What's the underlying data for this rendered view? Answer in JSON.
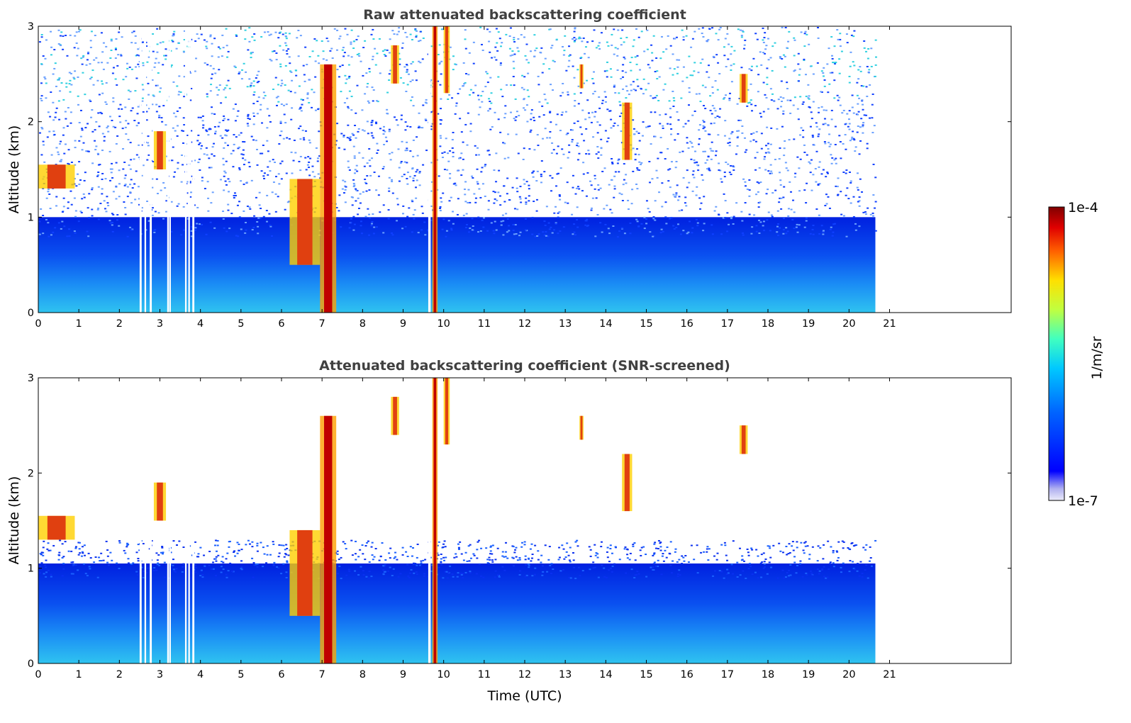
{
  "chart_data": [
    {
      "type": "heatmap",
      "title": "Raw attenuated backscattering coefficient",
      "xlabel": "",
      "ylabel": "Altitude (km)",
      "xlim": [
        0,
        24
      ],
      "ylim": [
        0,
        3
      ],
      "xticks": [
        "0",
        "1",
        "2",
        "3",
        "4",
        "5",
        "6",
        "7",
        "8",
        "9",
        "10",
        "11",
        "12",
        "13",
        "14",
        "15",
        "16",
        "17",
        "18",
        "19",
        "20",
        "21"
      ],
      "yticks": [
        "0",
        "1",
        "2",
        "3"
      ],
      "data_end_time": 20.65,
      "screened": false,
      "gaps": [
        [
          2.5,
          2.55
        ],
        [
          2.62,
          2.66
        ],
        [
          2.75,
          2.8
        ],
        [
          3.18,
          3.22
        ],
        [
          3.23,
          3.27
        ],
        [
          3.62,
          3.66
        ],
        [
          3.7,
          3.74
        ],
        [
          3.8,
          3.85
        ],
        [
          9.62,
          9.68
        ]
      ],
      "layers": [
        {
          "t": [
            0.0,
            0.9
          ],
          "z": [
            1.3,
            1.55
          ],
          "level": "high"
        },
        {
          "t": [
            2.85,
            3.15
          ],
          "z": [
            1.5,
            1.9
          ],
          "level": "high"
        },
        {
          "t": [
            6.2,
            6.95
          ],
          "z": [
            0.5,
            1.4
          ],
          "level": "high"
        },
        {
          "t": [
            6.95,
            7.35
          ],
          "z": [
            0.0,
            2.6
          ],
          "level": "max"
        },
        {
          "t": [
            9.72,
            9.85
          ],
          "z": [
            0.0,
            3.0
          ],
          "level": "max"
        },
        {
          "t": [
            10.0,
            10.15
          ],
          "z": [
            2.3,
            3.0
          ],
          "level": "high"
        },
        {
          "t": [
            8.7,
            8.9
          ],
          "z": [
            2.4,
            2.8
          ],
          "level": "high"
        },
        {
          "t": [
            13.35,
            13.45
          ],
          "z": [
            2.35,
            2.6
          ],
          "level": "high"
        },
        {
          "t": [
            14.4,
            14.65
          ],
          "z": [
            1.6,
            2.2
          ],
          "level": "high"
        },
        {
          "t": [
            17.3,
            17.5
          ],
          "z": [
            2.2,
            2.5
          ],
          "level": "high"
        }
      ]
    },
    {
      "type": "heatmap",
      "title": "Attenuated backscattering coefficient (SNR-screened)",
      "xlabel": "Time (UTC)",
      "ylabel": "Altitude (km)",
      "xlim": [
        0,
        24
      ],
      "ylim": [
        0,
        3
      ],
      "xticks": [
        "0",
        "1",
        "2",
        "3",
        "4",
        "5",
        "6",
        "7",
        "8",
        "9",
        "10",
        "11",
        "12",
        "13",
        "14",
        "15",
        "16",
        "17",
        "18",
        "19",
        "20",
        "21"
      ],
      "yticks": [
        "0",
        "1",
        "2",
        "3"
      ],
      "data_end_time": 20.65,
      "screened": true,
      "gaps": [
        [
          2.5,
          2.55
        ],
        [
          2.62,
          2.66
        ],
        [
          2.75,
          2.8
        ],
        [
          3.18,
          3.22
        ],
        [
          3.23,
          3.27
        ],
        [
          3.62,
          3.66
        ],
        [
          3.7,
          3.74
        ],
        [
          3.8,
          3.85
        ],
        [
          9.62,
          9.68
        ]
      ],
      "layers": [
        {
          "t": [
            0.0,
            0.9
          ],
          "z": [
            1.3,
            1.55
          ],
          "level": "high"
        },
        {
          "t": [
            2.85,
            3.15
          ],
          "z": [
            1.5,
            1.9
          ],
          "level": "high"
        },
        {
          "t": [
            6.2,
            6.95
          ],
          "z": [
            0.5,
            1.4
          ],
          "level": "high"
        },
        {
          "t": [
            6.95,
            7.35
          ],
          "z": [
            0.0,
            2.6
          ],
          "level": "max"
        },
        {
          "t": [
            9.72,
            9.85
          ],
          "z": [
            0.0,
            3.0
          ],
          "level": "max"
        },
        {
          "t": [
            10.0,
            10.15
          ],
          "z": [
            2.3,
            3.0
          ],
          "level": "high"
        },
        {
          "t": [
            8.7,
            8.9
          ],
          "z": [
            2.4,
            2.8
          ],
          "level": "high"
        },
        {
          "t": [
            13.35,
            13.45
          ],
          "z": [
            2.35,
            2.6
          ],
          "level": "high"
        },
        {
          "t": [
            14.4,
            14.65
          ],
          "z": [
            1.6,
            2.2
          ],
          "level": "high"
        },
        {
          "t": [
            17.3,
            17.5
          ],
          "z": [
            2.2,
            2.5
          ],
          "level": "high"
        }
      ]
    }
  ],
  "colorbar": {
    "label": "1/m/sr",
    "max_label": "1e-4",
    "min_label": "1e-7",
    "colormap": "jet",
    "range": [
      1e-07,
      0.0001
    ],
    "log_scale": true
  }
}
